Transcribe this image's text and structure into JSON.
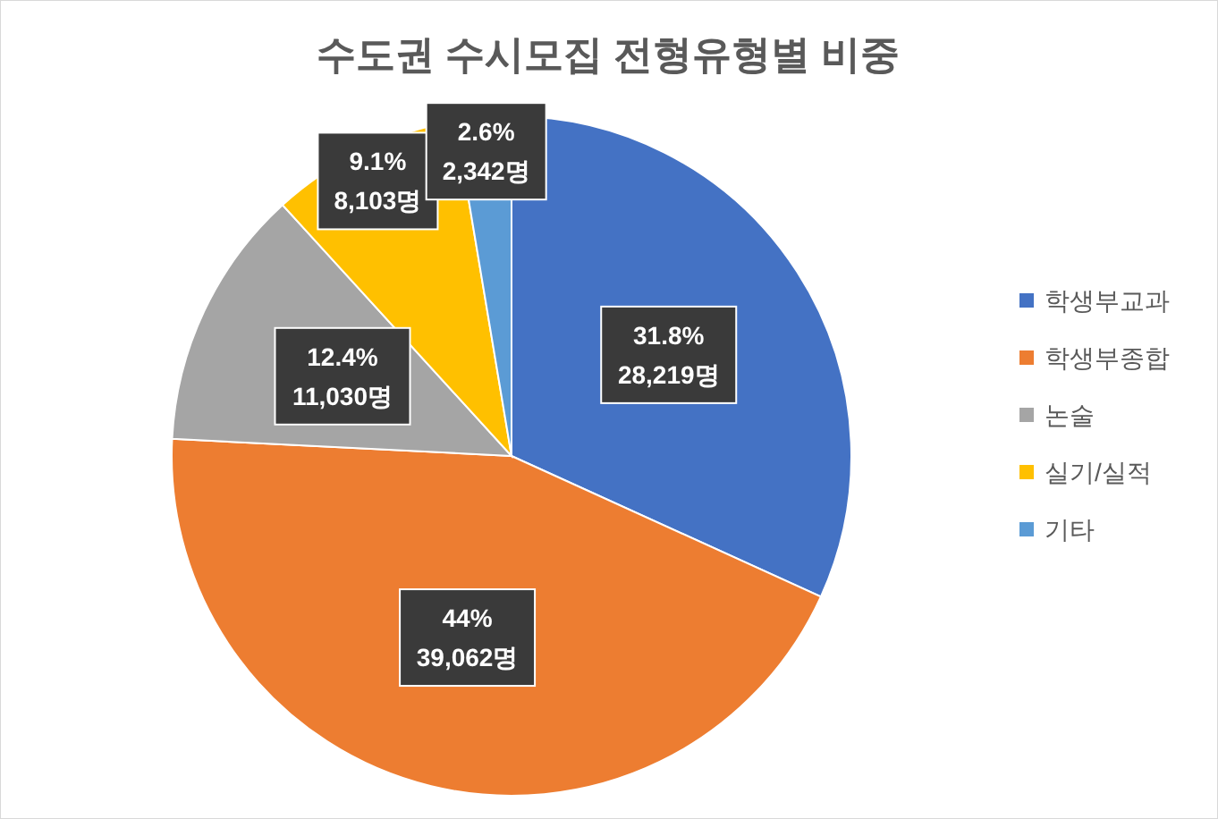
{
  "chart_data": {
    "type": "pie",
    "title": "수도권 수시모집 전형유형별 비중",
    "categories": [
      "학생부교과",
      "학생부종합",
      "논술",
      "실기/실적",
      "기타"
    ],
    "values": [
      28219,
      39062,
      11030,
      8103,
      2342
    ],
    "colors": [
      "#4472c4",
      "#ed7d31",
      "#a5a5a5",
      "#ffc000",
      "#5b9bd5"
    ],
    "value_labels": [
      "31.8%\n28,219명",
      "44%\n39,062명",
      "12.4%\n11,030명",
      "9.1%\n8,103명",
      "2.6%\n2,342명"
    ],
    "legend": "right"
  }
}
